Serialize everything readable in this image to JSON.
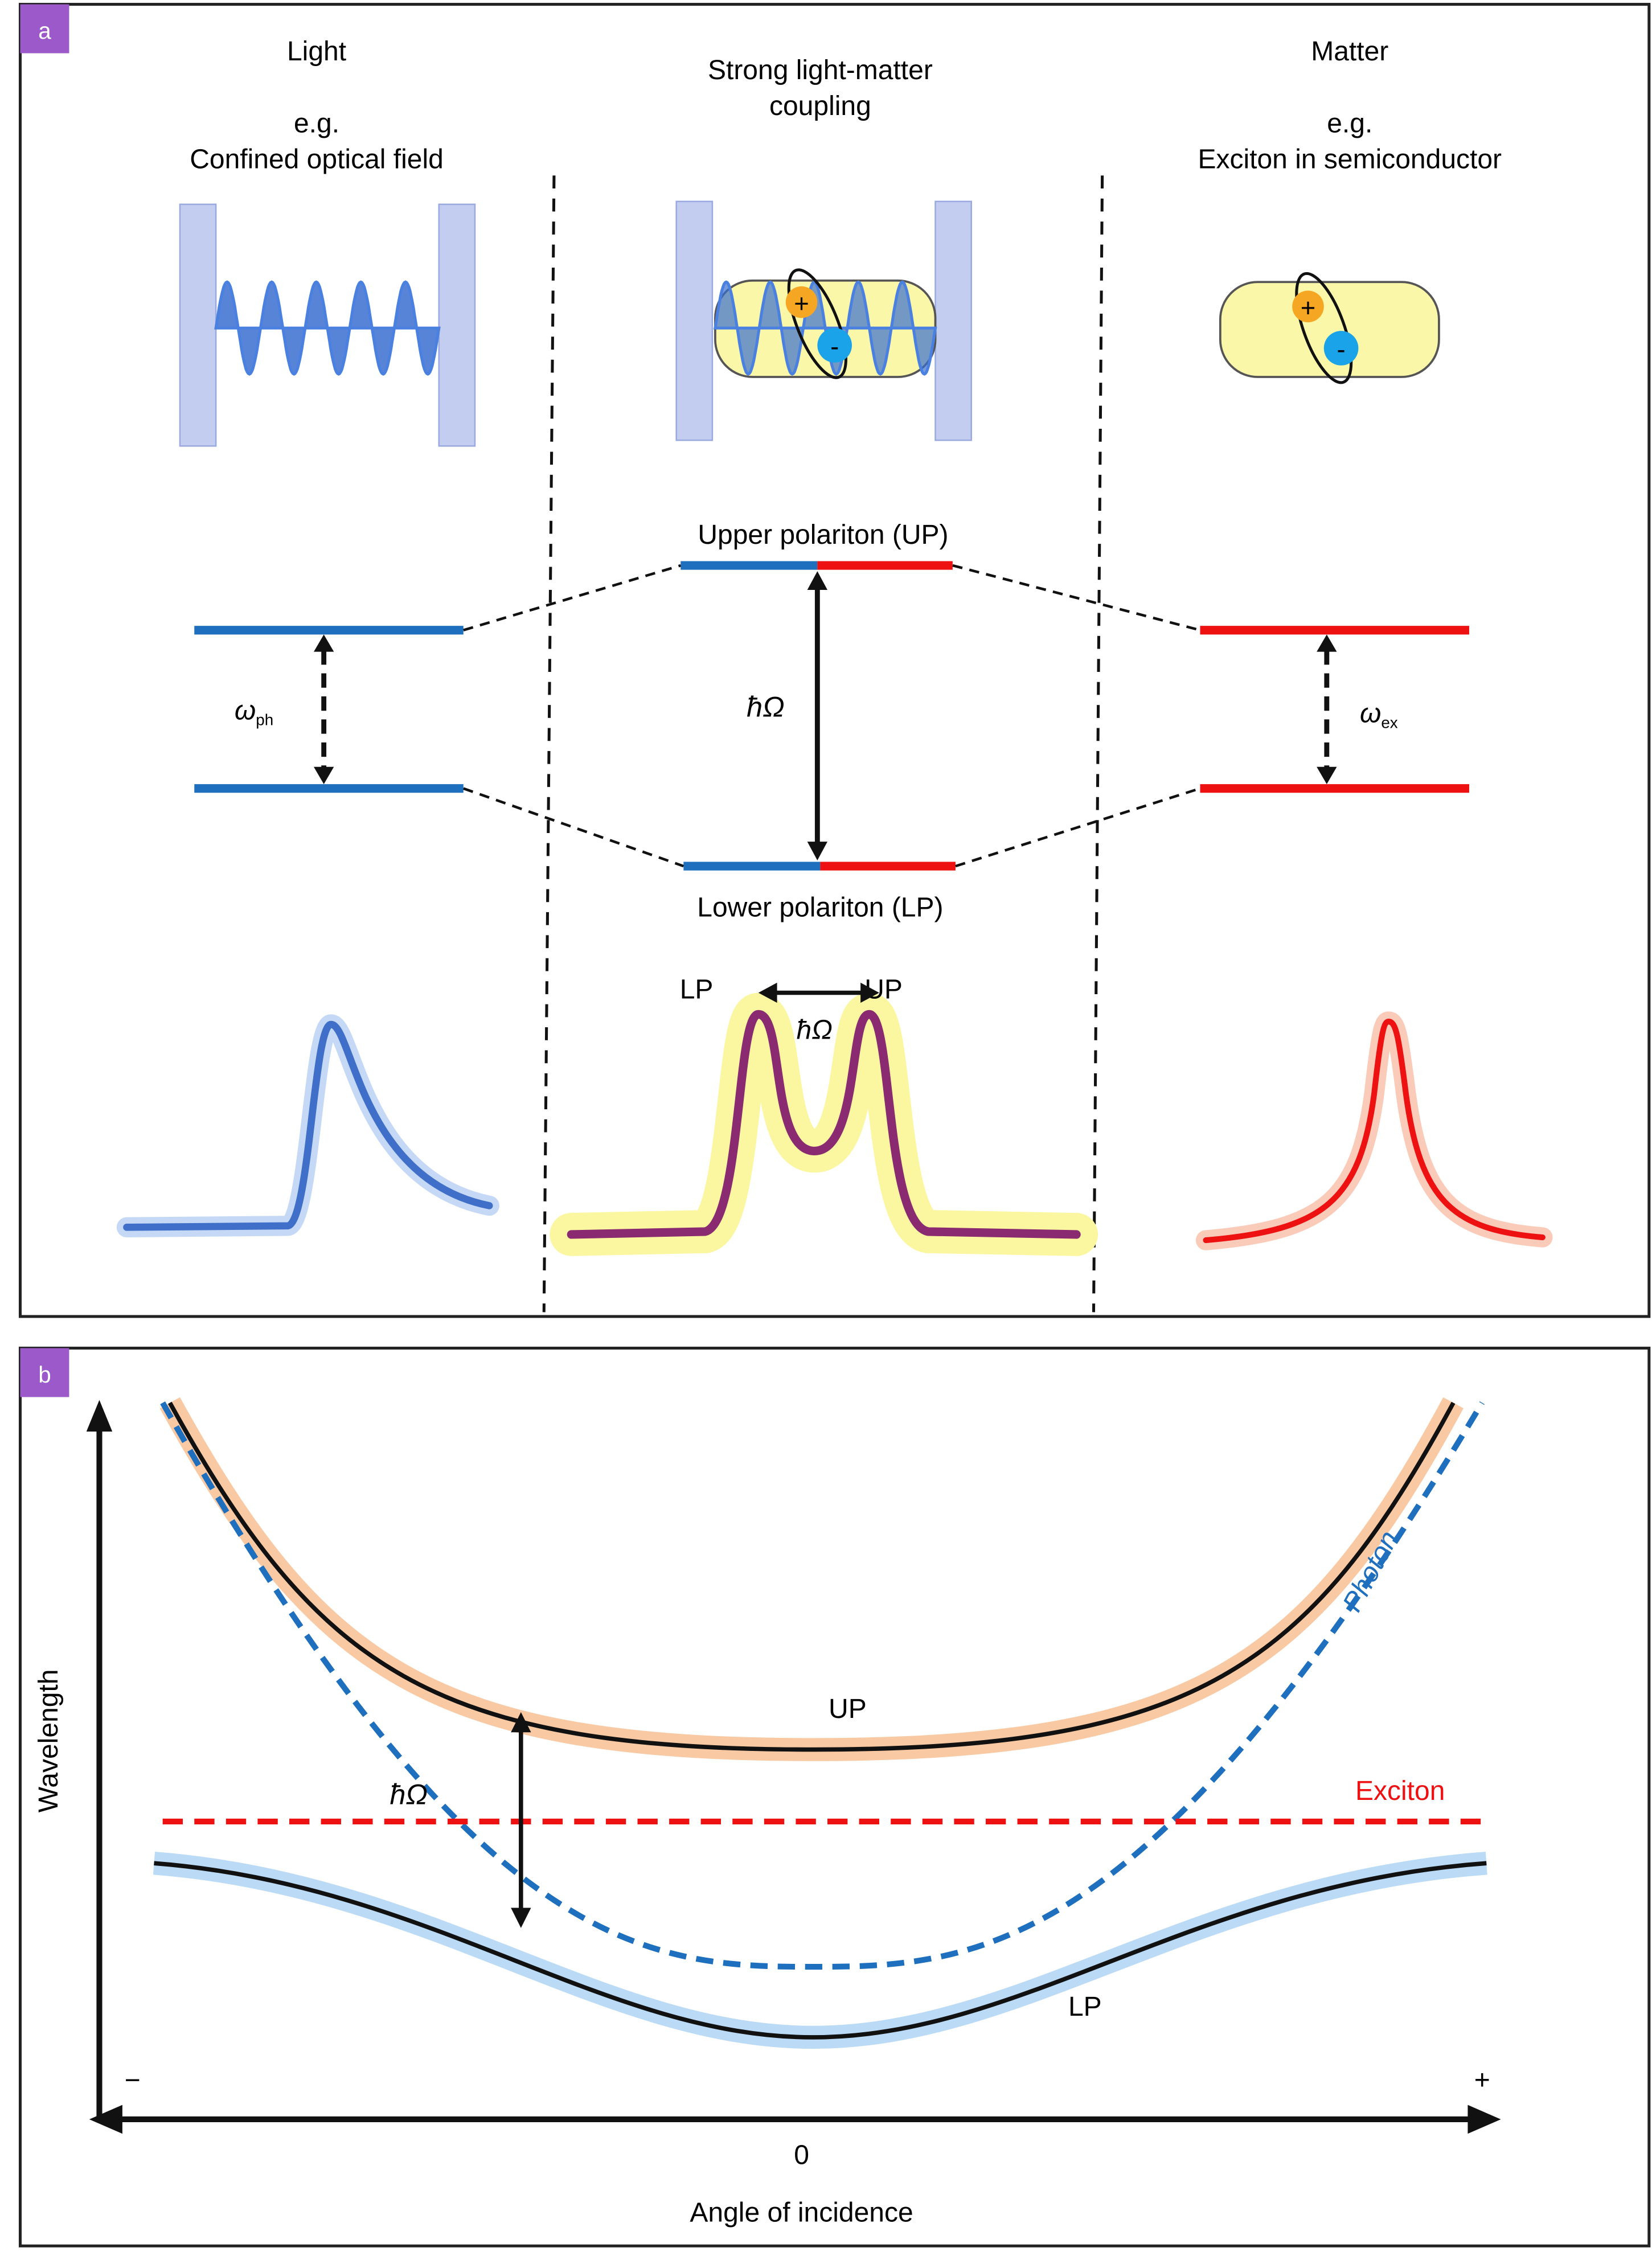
{
  "panel_a": {
    "label": "a",
    "light": {
      "title": "Light",
      "eg": "e.g.",
      "example": "Confined optical field",
      "omega": "ω",
      "omega_sub": "ph"
    },
    "coupling": {
      "title_line1": "Strong light-matter",
      "title_line2": "coupling",
      "upper": "Upper polariton (UP)",
      "lower": "Lower polariton (LP)",
      "splitting": "ħΩ",
      "spec_lp": "LP",
      "spec_up": "UP",
      "spec_splitting": "ħΩ"
    },
    "matter": {
      "title": "Matter",
      "eg": "e.g.",
      "example": "Exciton in semiconductor",
      "omega": "ω",
      "omega_sub": "ex",
      "plus": "+",
      "minus": "-"
    }
  },
  "panel_b": {
    "label": "b",
    "ylabel": "Wavelength",
    "xlabel": "Angle of incidence",
    "x_minus": "−",
    "x_plus": "+",
    "x_zero": "0",
    "up_label": "UP",
    "lp_label": "LP",
    "exciton_label": "Exciton",
    "photon_label": "Photon",
    "splitting": "ħΩ"
  },
  "colors": {
    "photon": "#1f6fbf",
    "exciton": "#ee1111",
    "label_bg": "#9b59c9",
    "up_glow": "#f5b27a",
    "lp_glow": "#9ccbf2",
    "capsule": "#fbf7a8"
  }
}
